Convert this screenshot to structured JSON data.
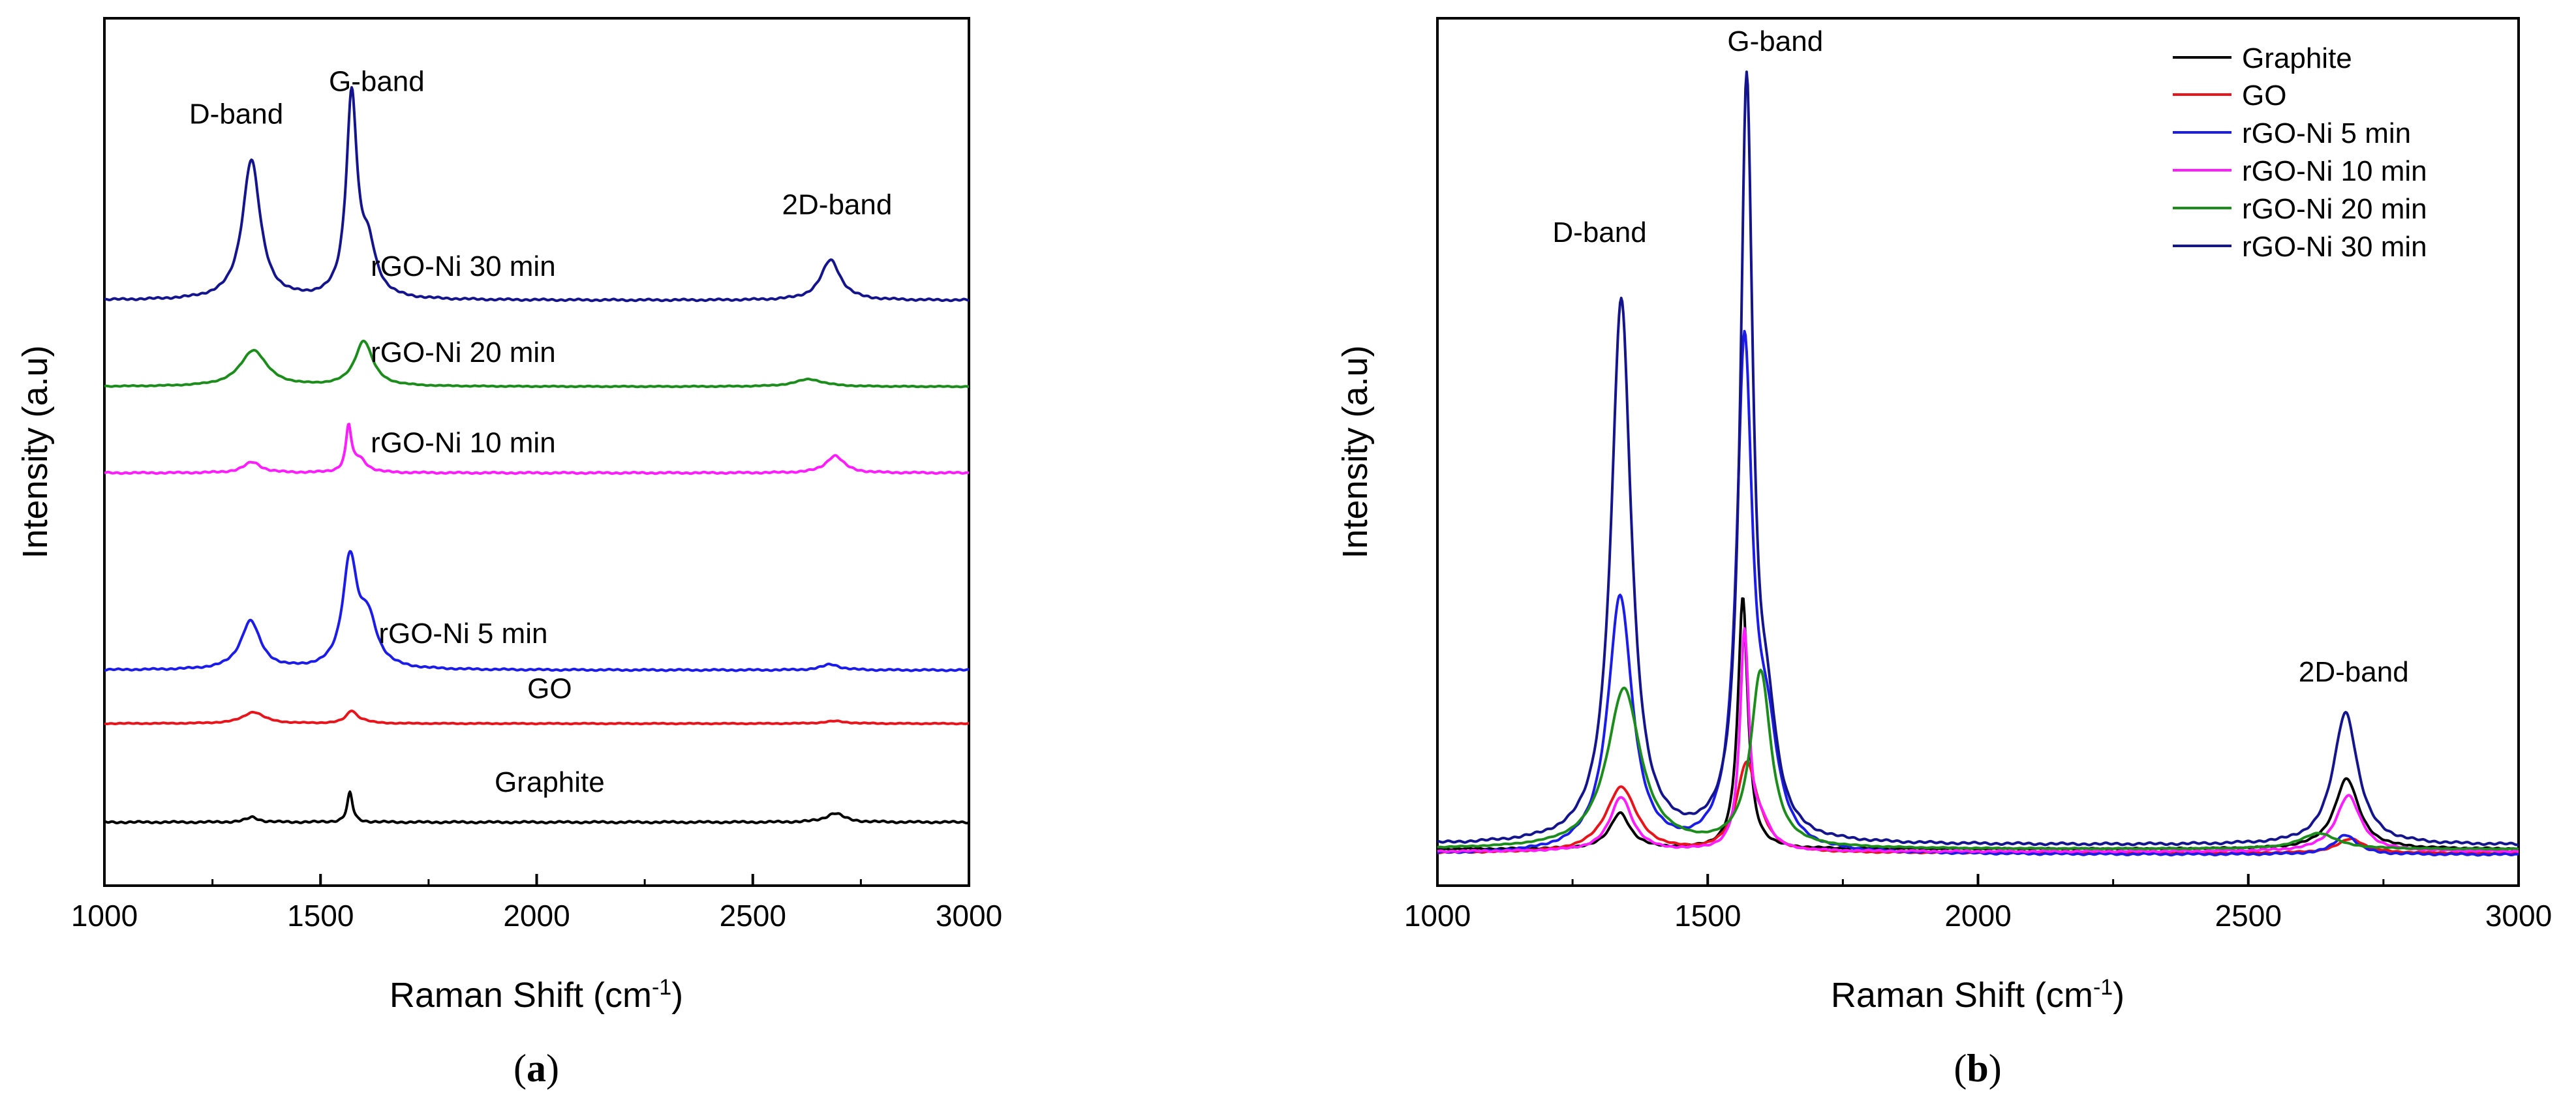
{
  "figure": {
    "panels": [
      {
        "id": "a",
        "caption_open": "(",
        "caption_letter": "a",
        "caption_close": ")"
      },
      {
        "id": "b",
        "caption_open": "(",
        "caption_letter": "b",
        "caption_close": ")"
      }
    ]
  },
  "chart_data": [
    {
      "type": "line",
      "panel": "a",
      "title": "",
      "xlabel": "Raman Shift (cm",
      "xlabel_sup": "-1",
      "xlabel_close": ")",
      "ylabel": "Intensity (a.u)",
      "xlim": [
        1000,
        3000
      ],
      "xticks": [
        1000,
        1500,
        2000,
        2500,
        3000
      ],
      "ylim": [
        0,
        100
      ],
      "yticks_shown": false,
      "grid": false,
      "layout": "stacked (offset traces)",
      "series": [
        {
          "name": "Graphite",
          "color": "#000000",
          "baseline": 5.5,
          "d": [
            0.6,
            1342,
            35
          ],
          "g": [
            3.6,
            1568,
            15
          ],
          "d2": [
            1.1,
            2690,
            50
          ],
          "shoulder": [
            0.0,
            1600,
            30
          ],
          "noise": 0.12
        },
        {
          "name": "GO",
          "color": "#e8141c",
          "baseline": 17.5,
          "d": [
            1.4,
            1345,
            60
          ],
          "g": [
            1.5,
            1572,
            30
          ],
          "d2": [
            0.3,
            2690,
            60
          ],
          "shoulder": [
            0.2,
            1600,
            40
          ],
          "noise": 0.06
        },
        {
          "name": "rGO-Ni 5 min",
          "color": "#1c1ce8",
          "baseline": 24.0,
          "d": [
            5.9,
            1338,
            55
          ],
          "g": [
            13.0,
            1568,
            40
          ],
          "d2": [
            0.7,
            2680,
            50
          ],
          "shoulder": [
            5.6,
            1610,
            50
          ],
          "noise": 0.1
        },
        {
          "name": "rGO-Ni 10 min",
          "color": "#ff1cff",
          "baseline": 48.0,
          "d": [
            1.3,
            1342,
            50
          ],
          "g": [
            5.4,
            1565,
            15
          ],
          "d2": [
            2.1,
            2690,
            50
          ],
          "shoulder": [
            1.6,
            1590,
            40
          ],
          "noise": 0.1
        },
        {
          "name": "rGO-Ni 20 min",
          "color": "#1c8c1c",
          "baseline": 58.5,
          "d": [
            4.4,
            1345,
            75
          ],
          "g": [
            5.5,
            1600,
            50
          ],
          "d2": [
            0.9,
            2630,
            80
          ],
          "shoulder": [
            0.0,
            1600,
            40
          ],
          "noise": 0.06
        },
        {
          "name": "rGO-Ni 30 min",
          "color": "#14148c",
          "baseline": 69.0,
          "d": [
            17.0,
            1340,
            50
          ],
          "g": [
            24.2,
            1572,
            30
          ],
          "d2": [
            4.9,
            2680,
            55
          ],
          "shoulder": [
            5.8,
            1610,
            45
          ],
          "noise": 0.12
        }
      ],
      "annotations": [
        {
          "text": "D-band",
          "x": 1305,
          "y": 90.5
        },
        {
          "text": "G-band",
          "x": 1630,
          "y": 94.5
        },
        {
          "text": "2D-band",
          "x": 2695,
          "y": 79.5
        },
        {
          "text": "rGO-Ni 30 min",
          "x": 1830,
          "y": 72.0
        },
        {
          "text": "rGO-Ni 20 min",
          "x": 1830,
          "y": 61.5
        },
        {
          "text": "rGO-Ni 10 min",
          "x": 1830,
          "y": 50.5
        },
        {
          "text": "rGO-Ni 5 min",
          "x": 1830,
          "y": 27.3
        },
        {
          "text": "GO",
          "x": 2030,
          "y": 20.6
        },
        {
          "text": "Graphite",
          "x": 2030,
          "y": 9.2
        }
      ]
    },
    {
      "type": "line",
      "panel": "b",
      "title": "",
      "xlabel": "Raman Shift (cm",
      "xlabel_sup": "-1",
      "xlabel_close": ")",
      "ylabel": "Intensity (a.u)",
      "xlim": [
        1000,
        3000
      ],
      "xticks": [
        1000,
        1500,
        2000,
        2500,
        3000
      ],
      "ylim": [
        0,
        100
      ],
      "yticks_shown": false,
      "grid": false,
      "legend_position": "top-right",
      "series": [
        {
          "name": "Graphite",
          "color": "#000000",
          "baseline": 3.5,
          "d": [
            4.5,
            1338,
            45
          ],
          "g": [
            31.5,
            1565,
            22
          ],
          "d2": [
            8.8,
            2682,
            55
          ],
          "shoulder": [
            0.0,
            1600,
            40
          ],
          "noise": 0.1
        },
        {
          "name": "GO",
          "color": "#e8141c",
          "baseline": 3.0,
          "d": [
            8.2,
            1340,
            70
          ],
          "g": [
            11.0,
            1572,
            45
          ],
          "d2": [
            1.8,
            2690,
            60
          ],
          "shoulder": [
            1.0,
            1600,
            40
          ],
          "noise": 0.08
        },
        {
          "name": "rGO-Ni 5 min",
          "color": "#1c1ce8",
          "baseline": 2.8,
          "d": [
            32.0,
            1338,
            55
          ],
          "g": [
            62.0,
            1568,
            35
          ],
          "d2": [
            2.5,
            2680,
            50
          ],
          "shoulder": [
            12.0,
            1610,
            50
          ],
          "noise": 0.12
        },
        {
          "name": "rGO-Ni 10 min",
          "color": "#ff1cff",
          "baseline": 3.2,
          "d": [
            6.8,
            1340,
            50
          ],
          "g": [
            27.0,
            1568,
            20
          ],
          "d2": [
            7.0,
            2685,
            55
          ],
          "shoulder": [
            3.0,
            1600,
            40
          ],
          "noise": 0.1
        },
        {
          "name": "rGO-Ni 20 min",
          "color": "#1c8c1c",
          "baseline": 3.5,
          "d": [
            20.0,
            1345,
            75
          ],
          "g": [
            22.0,
            1598,
            45
          ],
          "d2": [
            2.0,
            2630,
            80
          ],
          "shoulder": [
            0.0,
            1600,
            40
          ],
          "noise": 0.06
        },
        {
          "name": "rGO-Ni 30 min",
          "color": "#14148c",
          "baseline": 4.0,
          "d": [
            68.0,
            1340,
            45
          ],
          "g": [
            93.0,
            1572,
            28
          ],
          "d2": [
            16.6,
            2680,
            55
          ],
          "shoulder": [
            12.0,
            1610,
            45
          ],
          "noise": 0.15
        }
      ],
      "annotations": [
        {
          "text": "D-band",
          "x": 1300,
          "y": 79.5
        },
        {
          "text": "G-band",
          "x": 1625,
          "y": 115.5
        },
        {
          "text": "2D-band",
          "x": 2695,
          "y": 24.5
        }
      ]
    }
  ]
}
